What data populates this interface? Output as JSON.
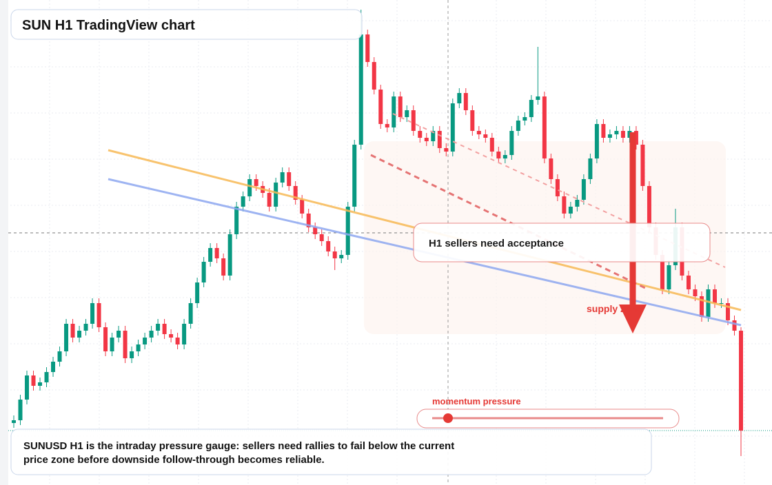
{
  "chart_data": {
    "type": "candlestick",
    "title": "SUN H1 TradingView chart",
    "annotations": [
      "H1 sellers need acceptance",
      "supply zone",
      "momentum pressure"
    ],
    "note": "SUNUSD H1 is the intraday pressure gauge: sellers need rallies to fail below the current price zone before downside follow-through becomes reliable.",
    "up_color": "#089981",
    "down_color": "#f23645",
    "ylim": [
      0,
      704
    ],
    "open": [
      90,
      94,
      124,
      159,
      144,
      149,
      164,
      179,
      194,
      234,
      214,
      224,
      234,
      264,
      229,
      194,
      214,
      224,
      184,
      194,
      204,
      214,
      224,
      234,
      219,
      214,
      204,
      234,
      264,
      294,
      324,
      344,
      329,
      304,
      364,
      404,
      419,
      444,
      434,
      424,
      404,
      439,
      454,
      434,
      414,
      394,
      374,
      364,
      354,
      339,
      329,
      334,
      404,
      494,
      654,
      614,
      574,
      524,
      519,
      564,
      534,
      544,
      514,
      504,
      499,
      514,
      489,
      484,
      554,
      569,
      544,
      514,
      509,
      504,
      484,
      474,
      479,
      514,
      529,
      534,
      559,
      564,
      474,
      444,
      419,
      394,
      404,
      414,
      444,
      474,
      524,
      504,
      509,
      514,
      504,
      514,
      494,
      434,
      374,
      334,
      284,
      319,
      374,
      304,
      284,
      274,
      244,
      284,
      264,
      264,
      239,
      224
    ],
    "high": [
      101,
      131,
      166,
      166,
      156,
      171,
      186,
      201,
      241,
      241,
      231,
      241,
      271,
      271,
      236,
      221,
      231,
      231,
      201,
      211,
      221,
      231,
      241,
      241,
      226,
      221,
      241,
      271,
      301,
      331,
      351,
      351,
      336,
      371,
      411,
      426,
      451,
      451,
      441,
      431,
      446,
      461,
      461,
      441,
      421,
      401,
      381,
      371,
      361,
      346,
      341,
      411,
      501,
      690,
      661,
      621,
      581,
      531,
      571,
      571,
      551,
      551,
      521,
      511,
      521,
      521,
      496,
      561,
      576,
      576,
      551,
      521,
      516,
      511,
      491,
      486,
      521,
      536,
      541,
      566,
      636,
      571,
      481,
      451,
      426,
      411,
      421,
      451,
      481,
      531,
      531,
      516,
      521,
      521,
      521,
      521,
      501,
      441,
      381,
      341,
      326,
      401,
      381,
      311,
      291,
      281,
      291,
      291,
      271,
      271,
      246,
      229
    ],
    "low": [
      83,
      87,
      117,
      137,
      137,
      142,
      157,
      172,
      187,
      207,
      207,
      217,
      227,
      222,
      187,
      187,
      207,
      177,
      177,
      187,
      197,
      207,
      217,
      212,
      207,
      197,
      197,
      227,
      257,
      287,
      317,
      322,
      297,
      297,
      357,
      397,
      412,
      427,
      417,
      397,
      397,
      432,
      427,
      407,
      387,
      367,
      357,
      347,
      332,
      312,
      322,
      327,
      397,
      487,
      607,
      567,
      517,
      512,
      512,
      527,
      527,
      507,
      497,
      492,
      492,
      482,
      477,
      477,
      547,
      537,
      507,
      502,
      497,
      477,
      467,
      467,
      472,
      507,
      522,
      527,
      552,
      467,
      437,
      412,
      387,
      387,
      397,
      407,
      437,
      467,
      497,
      497,
      502,
      497,
      497,
      487,
      427,
      367,
      327,
      277,
      277,
      312,
      297,
      277,
      267,
      237,
      237,
      257,
      257,
      232,
      217,
      42
    ],
    "close": [
      94,
      124,
      159,
      144,
      149,
      164,
      179,
      194,
      234,
      214,
      224,
      234,
      264,
      229,
      194,
      214,
      224,
      184,
      194,
      204,
      214,
      224,
      234,
      219,
      214,
      204,
      234,
      264,
      294,
      324,
      344,
      329,
      304,
      364,
      404,
      419,
      444,
      434,
      424,
      404,
      439,
      454,
      434,
      414,
      394,
      374,
      364,
      354,
      339,
      329,
      334,
      404,
      494,
      654,
      614,
      574,
      524,
      519,
      564,
      534,
      544,
      514,
      504,
      499,
      514,
      489,
      484,
      554,
      569,
      544,
      514,
      509,
      504,
      484,
      474,
      479,
      514,
      529,
      534,
      559,
      564,
      474,
      444,
      419,
      394,
      404,
      414,
      444,
      474,
      524,
      504,
      509,
      514,
      504,
      514,
      494,
      434,
      374,
      334,
      284,
      319,
      374,
      304,
      284,
      274,
      244,
      284,
      264,
      264,
      239,
      224,
      79
    ]
  }
}
